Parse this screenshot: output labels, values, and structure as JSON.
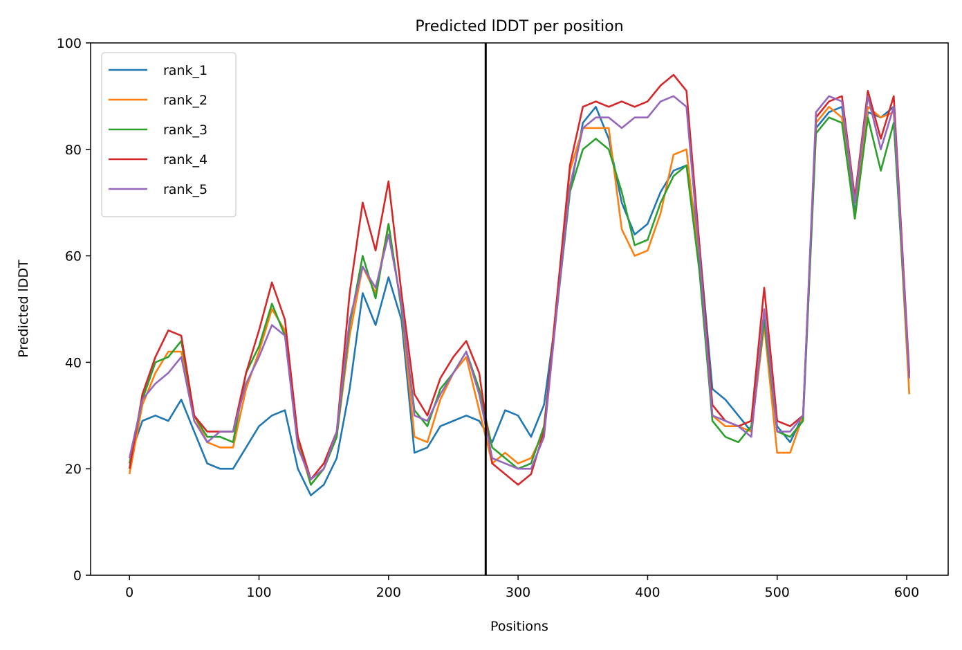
{
  "chart_data": {
    "type": "line",
    "title": "Predicted lDDT per position",
    "xlabel": "Positions",
    "ylabel": "Predicted lDDT",
    "xlim": [
      -30,
      632
    ],
    "ylim": [
      0,
      100
    ],
    "x_ticks": [
      0,
      100,
      200,
      300,
      400,
      500,
      600
    ],
    "y_ticks": [
      0,
      20,
      40,
      60,
      80,
      100
    ],
    "grid": false,
    "legend_position": "top-left",
    "vertical_line_x": 275,
    "x": [
      0,
      10,
      20,
      30,
      40,
      50,
      60,
      70,
      80,
      90,
      100,
      110,
      120,
      130,
      140,
      150,
      160,
      170,
      180,
      190,
      200,
      210,
      220,
      230,
      240,
      250,
      260,
      270,
      280,
      290,
      300,
      310,
      320,
      330,
      340,
      350,
      360,
      370,
      380,
      390,
      400,
      410,
      420,
      430,
      440,
      450,
      460,
      470,
      480,
      490,
      500,
      510,
      520,
      530,
      540,
      550,
      560,
      570,
      580,
      590,
      602
    ],
    "series": [
      {
        "name": "rank_1",
        "color": "#1f77b4",
        "values": [
          22,
          29,
          30,
          29,
          33,
          27,
          21,
          20,
          20,
          24,
          28,
          30,
          31,
          20,
          15,
          17,
          22,
          35,
          53,
          47,
          56,
          48,
          23,
          24,
          28,
          29,
          30,
          29,
          25,
          31,
          30,
          26,
          32,
          50,
          72,
          85,
          88,
          82,
          70,
          64,
          66,
          72,
          76,
          77,
          62,
          35,
          33,
          30,
          27,
          47,
          28,
          25,
          30,
          84,
          87,
          88,
          68,
          87,
          86,
          88,
          37
        ]
      },
      {
        "name": "rank_2",
        "color": "#ff7f0e",
        "values": [
          19,
          32,
          38,
          42,
          42,
          30,
          25,
          24,
          24,
          35,
          42,
          50,
          46,
          25,
          17,
          20,
          26,
          45,
          58,
          53,
          66,
          50,
          26,
          25,
          33,
          38,
          41,
          31,
          21,
          23,
          21,
          22,
          27,
          52,
          76,
          84,
          84,
          84,
          65,
          60,
          61,
          68,
          79,
          80,
          58,
          30,
          28,
          28,
          27,
          47,
          23,
          23,
          30,
          85,
          88,
          86,
          67,
          88,
          86,
          87,
          34
        ]
      },
      {
        "name": "rank_3",
        "color": "#2ca02c",
        "values": [
          21,
          33,
          40,
          41,
          44,
          30,
          26,
          26,
          25,
          38,
          43,
          51,
          45,
          26,
          17,
          20,
          26,
          47,
          60,
          52,
          66,
          50,
          31,
          28,
          35,
          38,
          42,
          35,
          24,
          22,
          20,
          21,
          28,
          50,
          72,
          80,
          82,
          80,
          72,
          62,
          63,
          70,
          75,
          77,
          57,
          29,
          26,
          25,
          28,
          48,
          27,
          26,
          29,
          83,
          86,
          85,
          67,
          86,
          76,
          85,
          37
        ]
      },
      {
        "name": "rank_4",
        "color": "#d62728",
        "values": [
          20,
          34,
          41,
          46,
          45,
          30,
          27,
          27,
          27,
          38,
          46,
          55,
          48,
          26,
          18,
          21,
          27,
          53,
          70,
          61,
          74,
          53,
          34,
          30,
          37,
          41,
          44,
          38,
          21,
          19,
          17,
          19,
          27,
          52,
          77,
          88,
          89,
          88,
          89,
          88,
          89,
          92,
          94,
          91,
          62,
          32,
          29,
          28,
          29,
          54,
          29,
          28,
          30,
          86,
          89,
          90,
          71,
          91,
          82,
          90,
          38
        ]
      },
      {
        "name": "rank_5",
        "color": "#9467bd",
        "values": [
          22,
          33,
          36,
          38,
          41,
          29,
          25,
          27,
          27,
          36,
          41,
          47,
          45,
          24,
          18,
          20,
          27,
          48,
          58,
          54,
          64,
          51,
          30,
          29,
          34,
          38,
          42,
          34,
          22,
          21,
          20,
          20,
          26,
          50,
          73,
          84,
          86,
          86,
          84,
          86,
          86,
          89,
          90,
          88,
          60,
          30,
          29,
          28,
          26,
          50,
          27,
          27,
          30,
          87,
          90,
          89,
          70,
          90,
          80,
          88,
          37
        ]
      }
    ]
  }
}
